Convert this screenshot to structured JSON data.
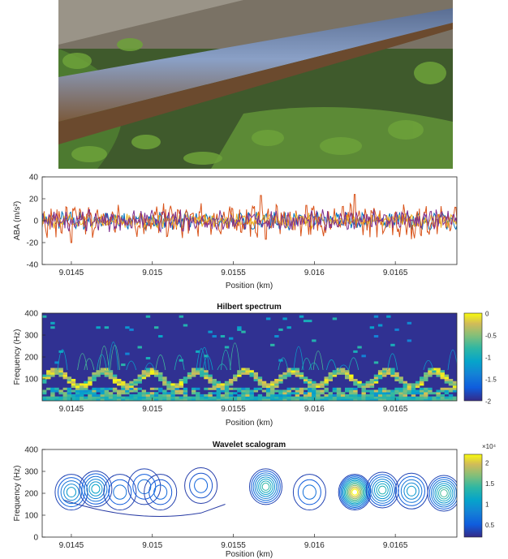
{
  "photo": {
    "subject": "railway-rail-with-vegetation"
  },
  "chart_data": [
    {
      "type": "line",
      "title": "",
      "ylabel": "ABA (m/s²)",
      "xlabel": "Position (km)",
      "xlim": [
        9.01432,
        9.01688
      ],
      "ylim": [
        -40,
        40
      ],
      "yticks": [
        "40",
        "20",
        "0",
        "-20",
        "-40"
      ],
      "ytick_values": [
        40,
        20,
        0,
        -20,
        -40
      ],
      "xticks": [
        "9.0145",
        "9.015",
        "9.0155",
        "9.016",
        "9.0165"
      ],
      "xtick_values": [
        9.0145,
        9.015,
        9.0155,
        9.016,
        9.0165
      ],
      "series": [
        {
          "color": "#0072BD",
          "amplitude": 6
        },
        {
          "color": "#D95319",
          "amplitude": 11
        },
        {
          "color": "#EDB120",
          "amplitude": 5
        },
        {
          "color": "#7E2F8E",
          "amplitude": 7
        }
      ],
      "peaks": [
        {
          "x": 9.01452,
          "y": 12
        },
        {
          "x": 9.01567,
          "y": 23
        },
        {
          "x": 9.01595,
          "y": 14
        },
        {
          "x": 9.01625,
          "y": 24
        },
        {
          "x": 9.0145,
          "y": -20
        },
        {
          "x": 9.0157,
          "y": -17
        },
        {
          "x": 9.0166,
          "y": -17
        }
      ]
    },
    {
      "type": "heatmap",
      "title": "Hilbert spectrum",
      "ylabel": "Frequency (Hz)",
      "xlabel": "Position (km)",
      "xlim": [
        9.01432,
        9.01688
      ],
      "ylim": [
        0,
        400
      ],
      "yticks": [
        "400",
        "300",
        "200",
        "100"
      ],
      "ytick_values": [
        400,
        300,
        200,
        100
      ],
      "xticks": [
        "9.0145",
        "9.015",
        "9.0155",
        "9.016",
        "9.0165"
      ],
      "xtick_values": [
        9.0145,
        9.015,
        9.0155,
        9.016,
        9.0165
      ],
      "colorbar": {
        "range": [
          -2,
          0
        ],
        "ticks": [
          "0",
          "-0.5",
          "-1",
          "-1.5",
          "-2"
        ],
        "tick_values": [
          0,
          -0.5,
          -1,
          -1.5,
          -2
        ]
      }
    },
    {
      "type": "contour",
      "title": "Wavelet scalogram",
      "ylabel": "Frequency (Hz)",
      "xlabel": "Position (km)",
      "xlim": [
        9.01432,
        9.01688
      ],
      "ylim": [
        0,
        400
      ],
      "yticks": [
        "400",
        "300",
        "200",
        "100",
        "0"
      ],
      "ytick_values": [
        400,
        300,
        200,
        100,
        0
      ],
      "xticks": [
        "9.0145",
        "9.015",
        "9.0155",
        "9.016",
        "9.0165"
      ],
      "xtick_values": [
        9.0145,
        9.015,
        9.0155,
        9.016,
        9.0165
      ],
      "colorbar": {
        "exponent": "×10⁴",
        "ticks": [
          "2",
          "1.5",
          "1",
          "0.5"
        ],
        "tick_values": [
          2,
          1.5,
          1,
          0.5
        ],
        "range": [
          0.2,
          2.2
        ]
      },
      "blobs": [
        {
          "x": 9.0145,
          "y": 205,
          "peak": 0.9
        },
        {
          "x": 9.01465,
          "y": 220,
          "peak": 1.0
        },
        {
          "x": 9.0148,
          "y": 205,
          "peak": 0.5
        },
        {
          "x": 9.01495,
          "y": 230,
          "peak": 0.5
        },
        {
          "x": 9.01505,
          "y": 205,
          "peak": 0.45
        },
        {
          "x": 9.0153,
          "y": 235,
          "peak": 0.4
        },
        {
          "x": 9.0157,
          "y": 230,
          "peak": 1.3
        },
        {
          "x": 9.01597,
          "y": 205,
          "peak": 0.5
        },
        {
          "x": 9.01625,
          "y": 205,
          "peak": 2.2
        },
        {
          "x": 9.01642,
          "y": 215,
          "peak": 1.2
        },
        {
          "x": 9.0166,
          "y": 210,
          "peak": 0.9
        },
        {
          "x": 9.0168,
          "y": 200,
          "peak": 1.4
        }
      ]
    }
  ]
}
